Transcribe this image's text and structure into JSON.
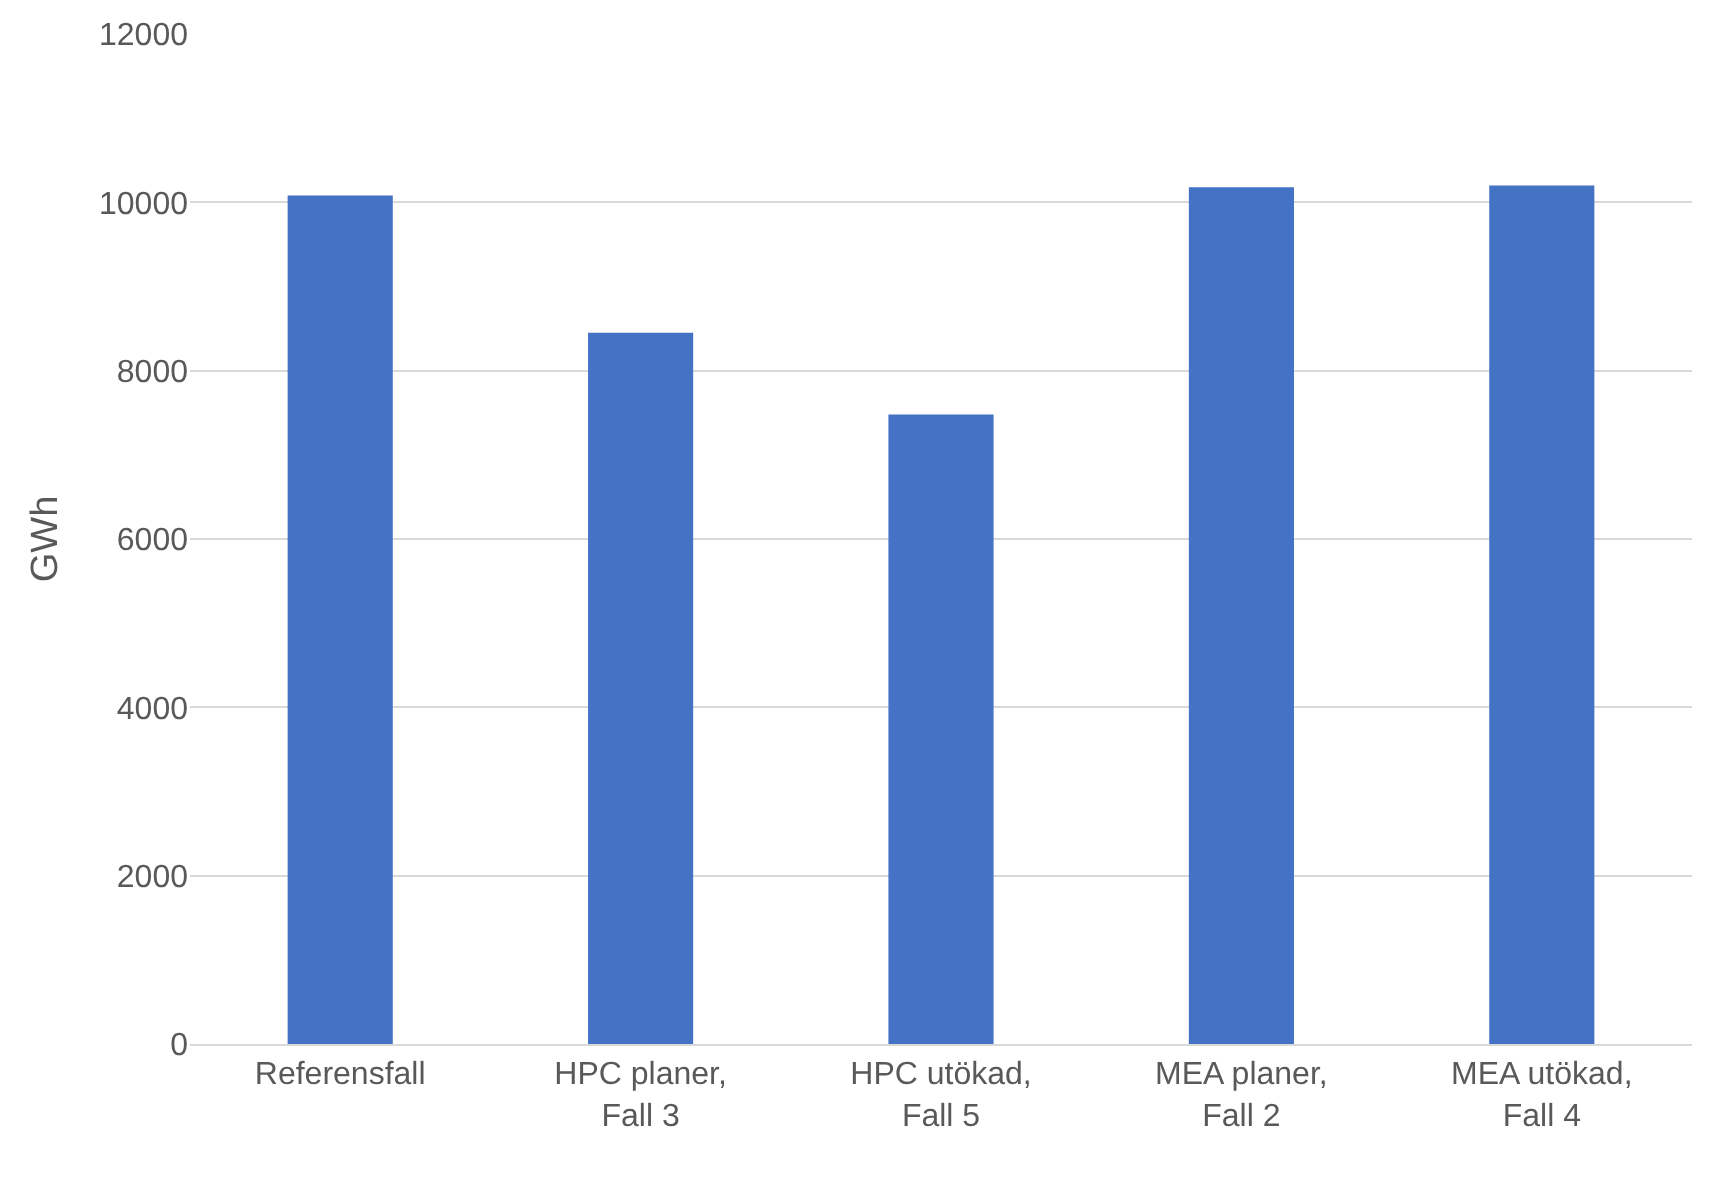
{
  "chart_data": {
    "type": "bar",
    "ylabel": "GWh",
    "categories": [
      "Referensfall",
      "HPC planer, Fall 3",
      "HPC utökad, Fall 5",
      "MEA planer, Fall 2",
      "MEA utökad, Fall 4"
    ],
    "values": [
      10080,
      8450,
      7480,
      10180,
      10200
    ],
    "color": "#4472c4",
    "ylim": [
      0,
      12000
    ],
    "yticks": [
      0,
      2000,
      4000,
      6000,
      8000,
      10000,
      12000
    ],
    "grid": "y",
    "legend": false
  }
}
